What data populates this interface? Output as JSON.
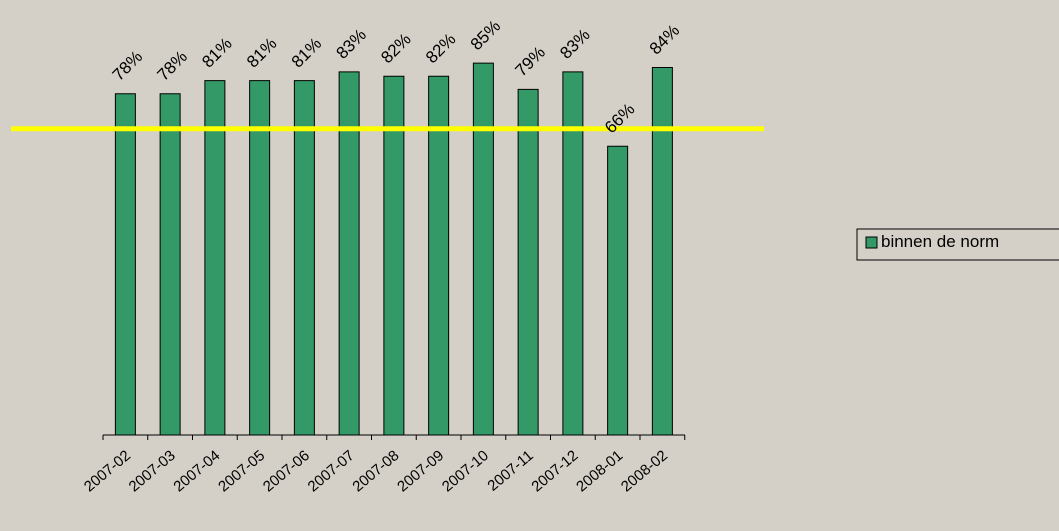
{
  "chart_data": {
    "type": "bar",
    "categories": [
      "2007-02",
      "2007-03",
      "2007-04",
      "2007-05",
      "2007-06",
      "2007-07",
      "2007-08",
      "2007-09",
      "2007-10",
      "2007-11",
      "2007-12",
      "2008-01",
      "2008-02"
    ],
    "series": [
      {
        "name": "binnen de norm",
        "values": [
          78,
          78,
          81,
          81,
          81,
          83,
          82,
          82,
          85,
          79,
          83,
          66,
          84
        ],
        "data_labels": [
          "78%",
          "78%",
          "81%",
          "81%",
          "81%",
          "83%",
          "82%",
          "82%",
          "85%",
          "79%",
          "83%",
          "66%",
          "84%"
        ]
      }
    ],
    "reference_line": {
      "value": 70,
      "color": "#ffff00"
    },
    "ylim": [
      0,
      100
    ],
    "grid": false,
    "legend_position": "right",
    "colors": {
      "bar": "#339966",
      "bar_stroke": "#000000",
      "background": "#d4d0c8"
    }
  }
}
